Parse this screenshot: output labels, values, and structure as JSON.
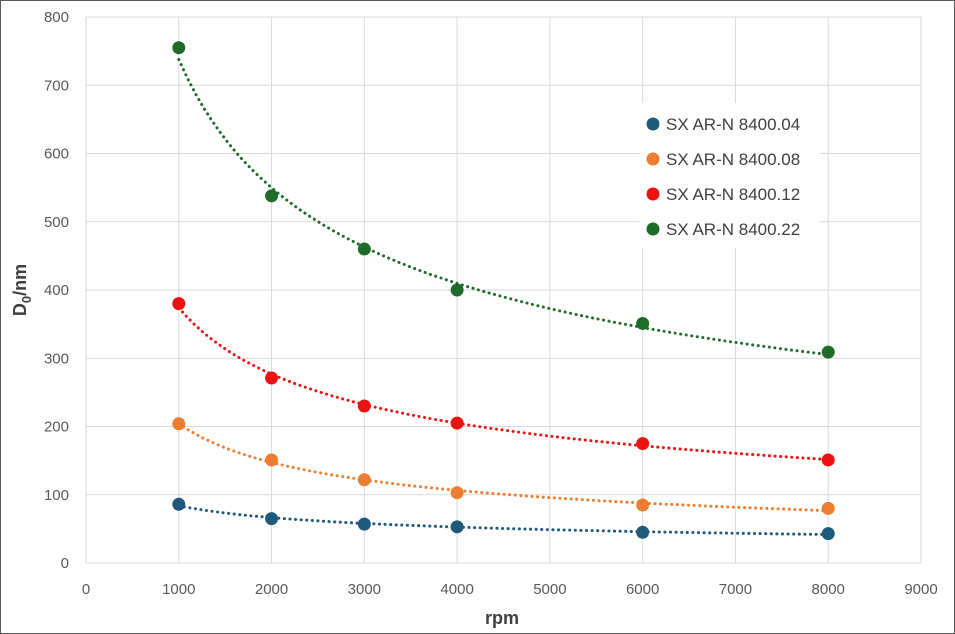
{
  "chart_data": {
    "type": "scatter",
    "title": "",
    "xlabel": "rpm",
    "ylabel_main": "D",
    "ylabel_sub": "0",
    "ylabel_tail": "/nm",
    "xlim": [
      0,
      9000
    ],
    "ylim": [
      0,
      800
    ],
    "x_ticks": [
      0,
      1000,
      2000,
      3000,
      4000,
      5000,
      6000,
      7000,
      8000,
      9000
    ],
    "y_ticks": [
      0,
      100,
      200,
      300,
      400,
      500,
      600,
      700,
      800
    ],
    "grid": true,
    "trendline": "power, dotted",
    "legend_position": "right",
    "series": [
      {
        "name": "SX AR-N 8400.04",
        "color": "#1f5a7a",
        "x": [
          1000,
          2000,
          3000,
          4000,
          6000,
          8000
        ],
        "y": [
          86,
          65,
          57,
          53,
          45,
          43
        ]
      },
      {
        "name": "SX AR-N 8400.08",
        "color": "#ed7d31",
        "x": [
          1000,
          2000,
          3000,
          4000,
          6000,
          8000
        ],
        "y": [
          204,
          151,
          122,
          103,
          85,
          80
        ]
      },
      {
        "name": "SX AR-N 8400.12",
        "color": "#ee1111",
        "x": [
          1000,
          2000,
          3000,
          4000,
          6000,
          8000
        ],
        "y": [
          380,
          271,
          230,
          205,
          175,
          151
        ]
      },
      {
        "name": "SX AR-N 8400.22",
        "color": "#1e6b2a",
        "x": [
          1000,
          2000,
          3000,
          4000,
          6000,
          8000
        ],
        "y": [
          755,
          538,
          460,
          400,
          351,
          309
        ]
      }
    ]
  }
}
